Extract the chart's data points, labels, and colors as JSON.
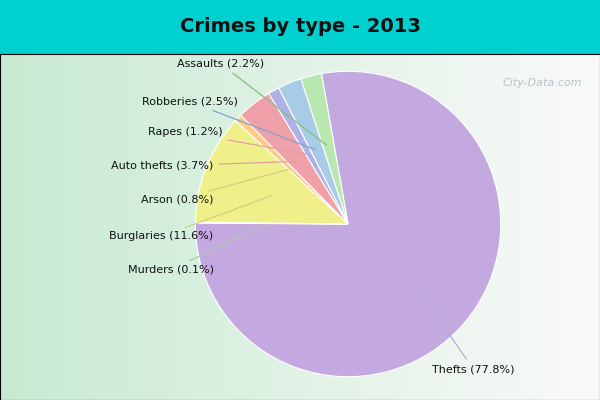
{
  "title": "Crimes by type - 2013",
  "plot_labels": [
    "Thefts",
    "Murders",
    "Burglaries",
    "Arson",
    "Auto thefts",
    "Rapes",
    "Robberies",
    "Assaults"
  ],
  "plot_values": [
    77.8,
    0.1,
    11.6,
    0.8,
    3.7,
    1.2,
    2.5,
    2.2
  ],
  "plot_colors": [
    "#c4a8e0",
    "#c8c8e8",
    "#f0f08a",
    "#ffcc88",
    "#f0a0a8",
    "#b0b0e8",
    "#a8cce8",
    "#b8e8b0"
  ],
  "label_texts": {
    "Thefts": "Thefts (77.8%)",
    "Murders": "Murders (0.1%)",
    "Burglaries": "Burglaries (11.6%)",
    "Arson": "Arson (0.8%)",
    "Auto thefts": "Auto thefts (3.7%)",
    "Rapes": "Rapes (1.2%)",
    "Robberies": "Robberies (2.5%)",
    "Assaults": "Assaults (2.2%)"
  },
  "background_top": "#00d0d0",
  "background_main_left": "#c8e8d0",
  "background_main_right": "#e8f4f0",
  "title_fontsize": 14,
  "label_fontsize": 8,
  "startangle": 100,
  "watermark": "City-Data.com"
}
